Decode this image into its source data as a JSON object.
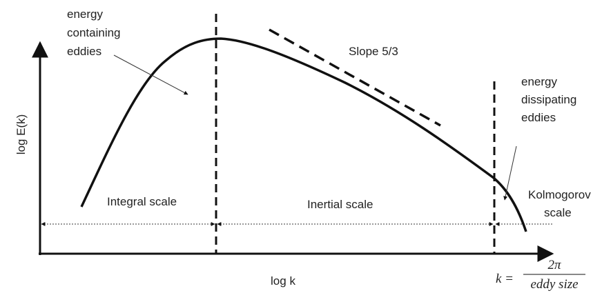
{
  "labels": {
    "energy_containing": [
      "energy",
      "containing",
      "eddies"
    ],
    "slope": "Slope 5/3",
    "energy_dissipating": [
      "energy",
      "dissipating",
      "eddies"
    ],
    "y_axis": "log E(k)",
    "x_axis": "log k",
    "integral": "Integral scale",
    "inertial": "Inertial scale",
    "kolmogorov": [
      "Kolmogorov",
      "scale"
    ],
    "formula": {
      "lhs": "k =",
      "numerator": "2π",
      "denominator": "eddy size"
    }
  }
}
